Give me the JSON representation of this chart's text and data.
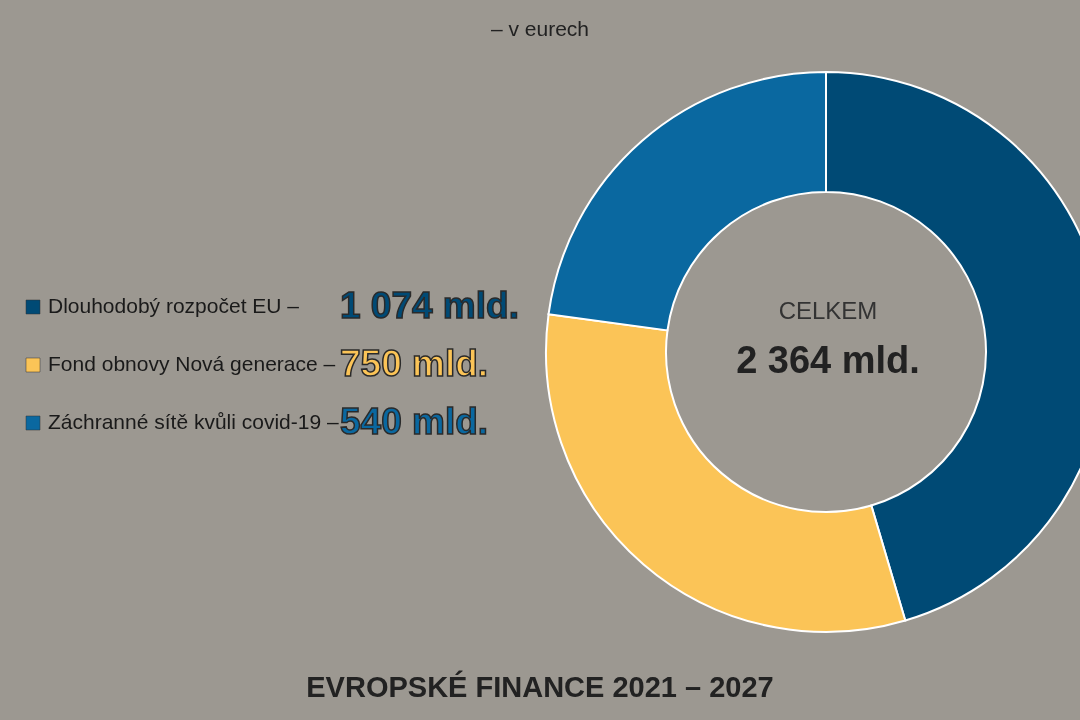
{
  "chart_data": {
    "type": "donut",
    "title": "EVROPSKÉ FINANCE 2021 – 2027",
    "subtitle": "– v eurech",
    "categories": [
      "Dlouhodobý rozpočet EU –",
      "Fond obnovy Nová generace –",
      "Záchranné sítě kvůli covid-19 –"
    ],
    "values": [
      1074,
      750,
      540
    ],
    "value_labels": [
      "1 074 mld.",
      "750 mld.",
      "540 mld."
    ],
    "colors": [
      "#004a75",
      "#fbc457",
      "#0a68a0"
    ],
    "legend": "left",
    "annotations": [
      "CELKEM",
      "2 364 mld."
    ]
  }
}
